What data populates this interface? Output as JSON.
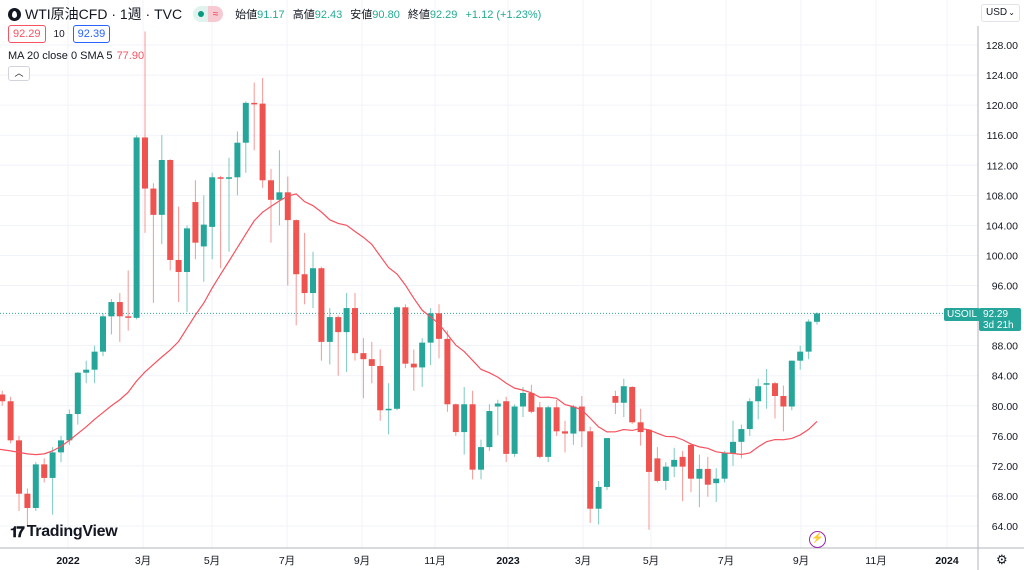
{
  "header": {
    "title": "WTI原油CFD · 1週 · TVC",
    "open_label": "始値",
    "open": "91.17",
    "high_label": "高値",
    "high": "92.43",
    "low_label": "安値",
    "low": "90.80",
    "close_label": "終値",
    "close": "92.29",
    "change": "+1.12 (+1.23%)",
    "status_icon": "market-open-dot",
    "delay_icon": "approx-icon"
  },
  "trade": {
    "sell": "92.29",
    "spread": "10",
    "buy": "92.39"
  },
  "indicator": {
    "label": "MA 20 close 0 SMA 5",
    "value": "77.90"
  },
  "currency": "USD",
  "symbol_tag": "USOIL",
  "last_price": "92.29",
  "countdown": "3d 21h",
  "brand": "TradingView",
  "colors": {
    "up": "#26a69a",
    "down": "#ef5350",
    "ma": "#f7525f",
    "grid": "#f0f3fa"
  },
  "chart_data": {
    "type": "candlestick",
    "title": "WTI原油CFD · 1週 · TVC",
    "ylim": [
      62,
      130
    ],
    "y_ticks": [
      "64.00",
      "68.00",
      "72.00",
      "76.00",
      "80.00",
      "84.00",
      "88.00",
      "96.00",
      "100.00",
      "104.00",
      "108.00",
      "112.00",
      "116.00",
      "120.00",
      "124.00",
      "128.00"
    ],
    "x_ticks": [
      {
        "label": "2022",
        "bold": true
      },
      {
        "label": "3月"
      },
      {
        "label": "5月"
      },
      {
        "label": "7月"
      },
      {
        "label": "9月"
      },
      {
        "label": "11月"
      },
      {
        "label": "2023",
        "bold": true
      },
      {
        "label": "3月"
      },
      {
        "label": "5月"
      },
      {
        "label": "7月"
      },
      {
        "label": "9月"
      },
      {
        "label": "11月"
      },
      {
        "label": "2024",
        "bold": true
      }
    ],
    "ma_period": 20,
    "ma_early": [
      74.2,
      74.0,
      73.8,
      73.6,
      73.5,
      73.6,
      74.0,
      74.6,
      75.4,
      76.3,
      77.2,
      78.2,
      79.1,
      80.0,
      80.8,
      81.8,
      83.3,
      84.5,
      85.5
    ],
    "ohlc": [
      [
        81.5,
        82,
        80,
        80.6
      ],
      [
        80.6,
        81.2,
        75,
        75.4
      ],
      [
        75.4,
        76,
        66,
        68.3
      ],
      [
        68.3,
        69,
        64,
        66.4
      ],
      [
        66.4,
        72.5,
        66,
        72.2
      ],
      [
        72.2,
        73,
        69.8,
        70.4
      ],
      [
        70.4,
        74.5,
        65.5,
        73.8
      ],
      [
        73.8,
        76,
        72.5,
        75.4
      ],
      [
        75.4,
        79.5,
        74.8,
        78.9
      ],
      [
        78.9,
        84.5,
        77.5,
        84.4
      ],
      [
        84.4,
        86,
        83,
        84.8
      ],
      [
        84.8,
        88,
        83,
        87.2
      ],
      [
        87.2,
        92.3,
        86.6,
        91.9
      ],
      [
        91.9,
        94.2,
        89.5,
        93.8
      ],
      [
        93.8,
        95,
        88.5,
        91.9
      ],
      [
        91.9,
        98,
        90,
        91.7
      ],
      [
        91.7,
        116,
        91.5,
        115.7
      ],
      [
        115.7,
        129.8,
        103,
        108.9
      ],
      [
        108.9,
        109.6,
        93.7,
        105.4
      ],
      [
        105.4,
        116,
        101.5,
        112.7
      ],
      [
        112.7,
        112.8,
        98,
        99.4
      ],
      [
        99.4,
        106.5,
        93.8,
        97.8
      ],
      [
        97.8,
        104,
        92.5,
        103.6
      ],
      [
        107.1,
        110,
        99.5,
        101.7
      ],
      [
        101.2,
        108,
        96.5,
        104.1
      ],
      [
        103.8,
        111,
        99.5,
        110.4
      ],
      [
        110.4,
        110.6,
        98.3,
        110.2
      ],
      [
        110.2,
        113,
        100.5,
        110.4
      ],
      [
        110.4,
        116.5,
        108,
        115.0
      ],
      [
        115.0,
        120.5,
        111,
        120.3
      ],
      [
        120.3,
        123,
        114,
        120.2
      ],
      [
        120.2,
        123.6,
        109,
        110
      ],
      [
        110,
        111.5,
        101.7,
        107.4
      ],
      [
        107.4,
        114,
        104,
        108.4
      ],
      [
        108.4,
        110.5,
        96,
        104.7
      ],
      [
        104.7,
        104.8,
        90.7,
        97.5
      ],
      [
        97.5,
        103,
        93.5,
        95
      ],
      [
        95,
        100.5,
        93,
        98.3
      ],
      [
        98.3,
        98.5,
        86,
        88.5
      ],
      [
        88.5,
        93,
        85.5,
        91.8
      ],
      [
        91.8,
        92,
        84,
        89.8
      ],
      [
        89.8,
        95,
        84.5,
        93.0
      ],
      [
        93.0,
        95,
        86,
        87.0
      ],
      [
        87,
        89,
        81,
        86.2
      ],
      [
        86.2,
        88.5,
        83,
        85.3
      ],
      [
        85.3,
        87.5,
        78,
        79.4
      ],
      [
        79.4,
        83,
        76.2,
        79.6
      ],
      [
        79.6,
        93.2,
        79.4,
        93.1
      ],
      [
        93.1,
        93.5,
        85,
        85.6
      ],
      [
        85.6,
        87.5,
        82,
        85.1
      ],
      [
        85.1,
        89,
        82.5,
        88.4
      ],
      [
        88.4,
        93,
        85.4,
        92.3
      ],
      [
        92.3,
        93.5,
        86.3,
        88.9
      ],
      [
        88.9,
        90,
        79.2,
        80.2
      ],
      [
        80.2,
        80.3,
        76,
        76.5
      ],
      [
        76.5,
        82.5,
        73.5,
        80.2
      ],
      [
        80.2,
        82,
        70.2,
        71.5
      ],
      [
        71.5,
        75.5,
        70.2,
        74.5
      ],
      [
        74.5,
        80.2,
        74,
        79.3
      ],
      [
        79.9,
        80.8,
        76.1,
        80.3
      ],
      [
        80.6,
        81.2,
        72.5,
        73.6
      ],
      [
        73.6,
        80.2,
        73.2,
        79.9
      ],
      [
        79.9,
        82.5,
        78.5,
        81.7
      ],
      [
        81.7,
        82.8,
        79,
        79.2
      ],
      [
        79.8,
        80.5,
        73,
        73.2
      ],
      [
        73.2,
        80,
        72.5,
        79.8
      ],
      [
        79.8,
        80.8,
        76,
        76.6
      ],
      [
        76.6,
        78,
        73.8,
        76.3
      ],
      [
        76.3,
        80.1,
        74.8,
        79.9
      ],
      [
        79.9,
        81.3,
        74.5,
        76.6
      ],
      [
        76.6,
        77.2,
        64.4,
        66.3
      ],
      [
        66.3,
        70,
        64.2,
        69.2
      ],
      [
        69.2,
        75.7,
        68.8,
        75.7
      ],
      [
        81.3,
        82,
        78.9,
        80.4
      ],
      [
        80.4,
        83.6,
        78.5,
        82.6
      ],
      [
        82.5,
        82.6,
        77.6,
        77.8
      ],
      [
        77.8,
        79.6,
        74.7,
        76.5
      ],
      [
        76.8,
        76.9,
        63.5,
        71.2
      ],
      [
        73,
        74.5,
        69.8,
        70.0
      ],
      [
        70,
        72.5,
        68.8,
        71.9
      ],
      [
        71.9,
        74.4,
        70.5,
        72.8
      ],
      [
        73.2,
        74,
        67.3,
        71.9
      ],
      [
        74.8,
        75,
        68.5,
        70.3
      ],
      [
        70.3,
        73.5,
        66.5,
        71.6
      ],
      [
        71.6,
        73.2,
        67.9,
        69.5
      ],
      [
        69.7,
        71.7,
        67.2,
        70.3
      ],
      [
        70.3,
        74,
        69.8,
        73.7
      ],
      [
        73.7,
        78,
        72,
        75.2
      ],
      [
        75.2,
        77.5,
        73,
        76.9
      ],
      [
        76.9,
        81,
        76,
        80.6
      ],
      [
        80.6,
        83.6,
        78.2,
        82.6
      ],
      [
        82.8,
        84.9,
        79.6,
        83.0
      ],
      [
        83,
        83.2,
        78.3,
        81.3
      ],
      [
        81.3,
        82.7,
        76.6,
        79.9
      ],
      [
        79.9,
        86,
        79.4,
        86
      ],
      [
        86,
        88,
        84.8,
        87.2
      ],
      [
        87.2,
        91.5,
        86.2,
        91.2
      ],
      [
        91.17,
        92.43,
        90.8,
        92.29
      ]
    ]
  }
}
